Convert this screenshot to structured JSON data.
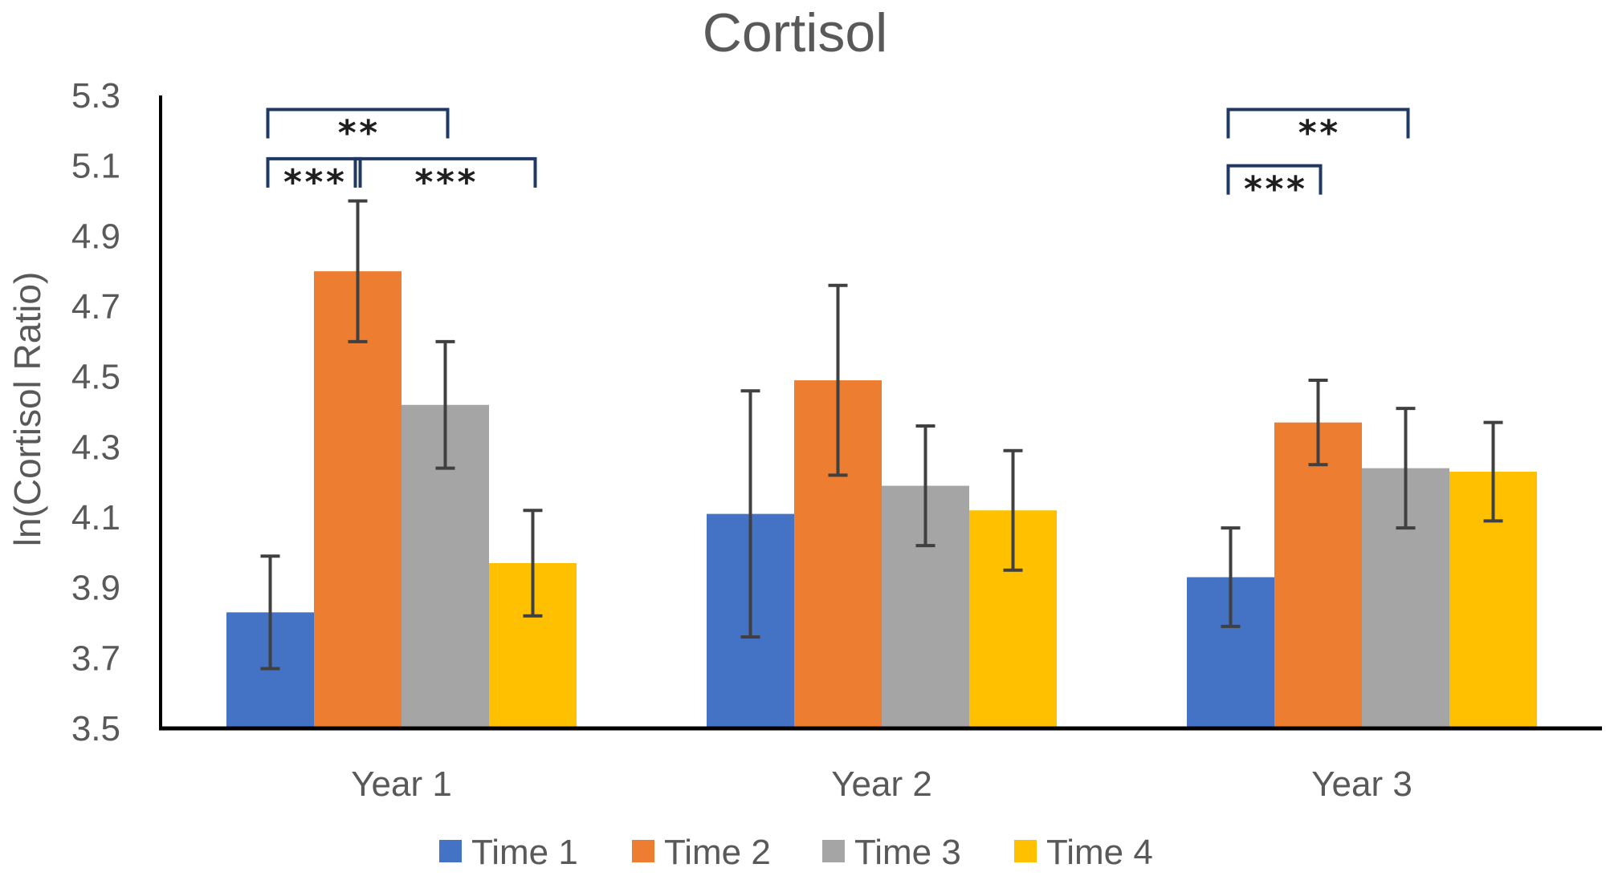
{
  "chart_data": {
    "type": "bar",
    "title": "Cortisol",
    "xlabel": "",
    "ylabel": "ln(Cortisol Ratio)",
    "ylim": [
      3.5,
      5.3
    ],
    "yticks": [
      "3.5",
      "3.7",
      "3.9",
      "4.1",
      "4.3",
      "4.5",
      "4.7",
      "4.9",
      "5.1",
      "5.3"
    ],
    "grid": false,
    "legend_position": "bottom",
    "categories": [
      "Year 1",
      "Year 2",
      "Year 3"
    ],
    "series": [
      {
        "name": "Time 1",
        "color": "#4472C4",
        "values": [
          3.83,
          4.11,
          3.93
        ],
        "errors": [
          0.16,
          0.35,
          0.14
        ]
      },
      {
        "name": "Time 2",
        "color": "#ED7D31",
        "values": [
          4.8,
          4.49,
          4.37
        ],
        "errors": [
          0.2,
          0.27,
          0.12
        ]
      },
      {
        "name": "Time 3",
        "color": "#A5A5A5",
        "values": [
          4.42,
          4.19,
          4.24
        ],
        "errors": [
          0.18,
          0.17,
          0.17
        ]
      },
      {
        "name": "Time 4",
        "color": "#FFC000",
        "values": [
          3.97,
          4.12,
          4.23
        ],
        "errors": [
          0.15,
          0.17,
          0.14
        ]
      }
    ],
    "annotations": [
      {
        "label": "**",
        "category": 0,
        "from": 0,
        "to": 2,
        "level": 5.26
      },
      {
        "label": "***",
        "category": 0,
        "from": 0,
        "to": 1,
        "level": 5.12
      },
      {
        "label": "***",
        "category": 0,
        "from": 1,
        "to": 3,
        "level": 5.12
      },
      {
        "label": "**",
        "category": 2,
        "from": 0,
        "to": 2,
        "level": 5.26
      },
      {
        "label": "***",
        "category": 2,
        "from": 0,
        "to": 1,
        "level": 5.1
      }
    ]
  }
}
